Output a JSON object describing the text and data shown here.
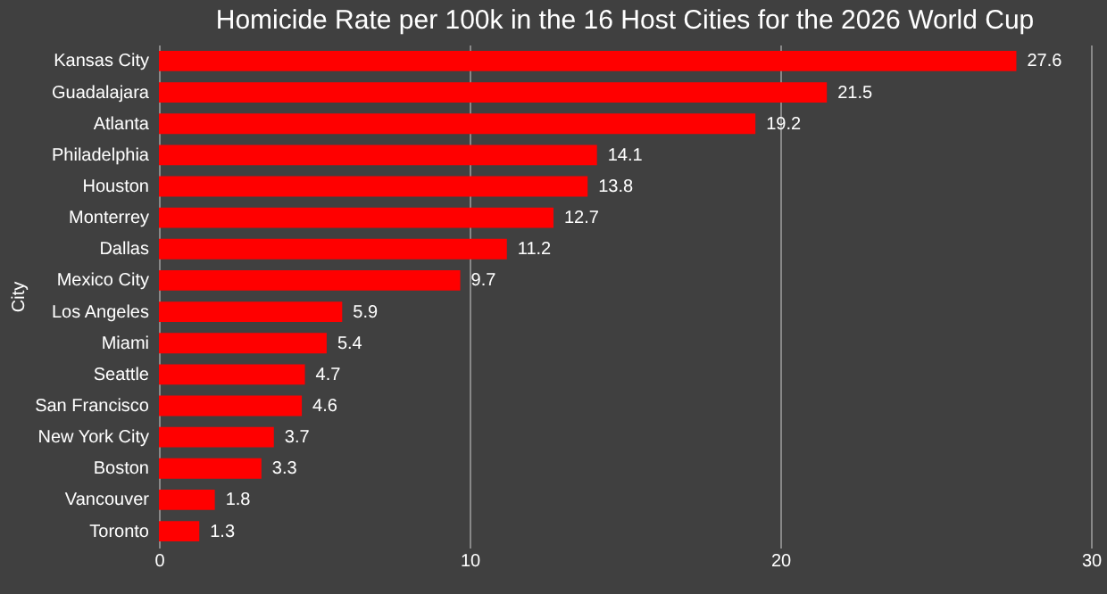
{
  "chart_data": {
    "type": "bar",
    "orientation": "horizontal",
    "title": "Homicide Rate per 100k in the 16 Host Cities for the 2026 World Cup",
    "ylabel": "City",
    "categories": [
      "Kansas City",
      "Guadalajara",
      "Atlanta",
      "Philadelphia",
      "Houston",
      "Monterrey",
      "Dallas",
      "Mexico City",
      "Los Angeles",
      "Miami",
      "Seattle",
      "San Francisco",
      "New York City",
      "Boston",
      "Vancouver",
      "Toronto"
    ],
    "values": [
      27.6,
      21.5,
      19.2,
      14.1,
      13.8,
      12.7,
      11.2,
      9.7,
      5.9,
      5.4,
      4.7,
      4.6,
      3.7,
      3.3,
      1.8,
      1.3
    ],
    "color": "#ff0000",
    "xlim": [
      0,
      30
    ],
    "xticks": [
      0,
      10,
      20,
      30
    ],
    "grid": "x",
    "data_labels": true
  }
}
